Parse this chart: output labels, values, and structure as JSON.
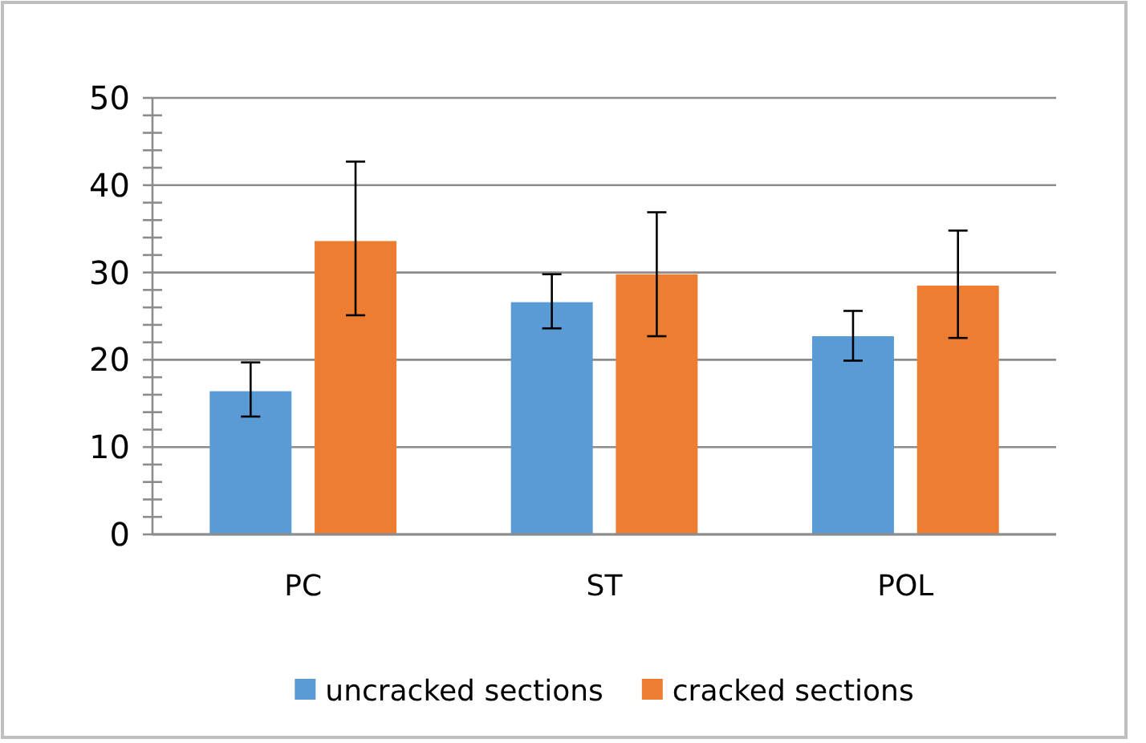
{
  "chart_data": {
    "type": "bar",
    "categories": [
      "PC",
      "ST",
      "POL"
    ],
    "series": [
      {
        "name": "uncracked sections",
        "color": "#5b9bd5",
        "values": [
          16.4,
          26.6,
          22.7
        ],
        "errors": [
          [
            13.5,
            19.7
          ],
          [
            23.6,
            29.8
          ],
          [
            19.9,
            25.6
          ]
        ]
      },
      {
        "name": "cracked sections",
        "color": "#ed7d31",
        "values": [
          33.6,
          29.8,
          28.5
        ],
        "errors": [
          [
            25.1,
            42.7
          ],
          [
            22.7,
            36.9
          ],
          [
            22.5,
            34.8
          ]
        ]
      }
    ],
    "ylim": [
      0,
      50
    ],
    "yticks": [
      0,
      {
        "value": 2,
        "label": null
      },
      {
        "value": 4,
        "label": null
      },
      {
        "value": 6,
        "label": null
      },
      {
        "value": 8,
        "label": null
      },
      10,
      {
        "value": 12,
        "label": null
      },
      {
        "value": 14,
        "label": null
      },
      {
        "value": 16,
        "label": null
      },
      {
        "value": 18,
        "label": null
      },
      20,
      {
        "value": 22,
        "label": null
      },
      {
        "value": 24,
        "label": null
      },
      {
        "value": 26,
        "label": null
      },
      {
        "value": 28,
        "label": null
      },
      30,
      {
        "value": 32,
        "label": null
      },
      {
        "value": 34,
        "label": null
      },
      {
        "value": 36,
        "label": null
      },
      {
        "value": 38,
        "label": null
      },
      40,
      {
        "value": 42,
        "label": null
      },
      {
        "value": 44,
        "label": null
      },
      {
        "value": 46,
        "label": null
      },
      {
        "value": 48,
        "label": null
      },
      50
    ],
    "grid": "y",
    "legend": "bottom"
  }
}
